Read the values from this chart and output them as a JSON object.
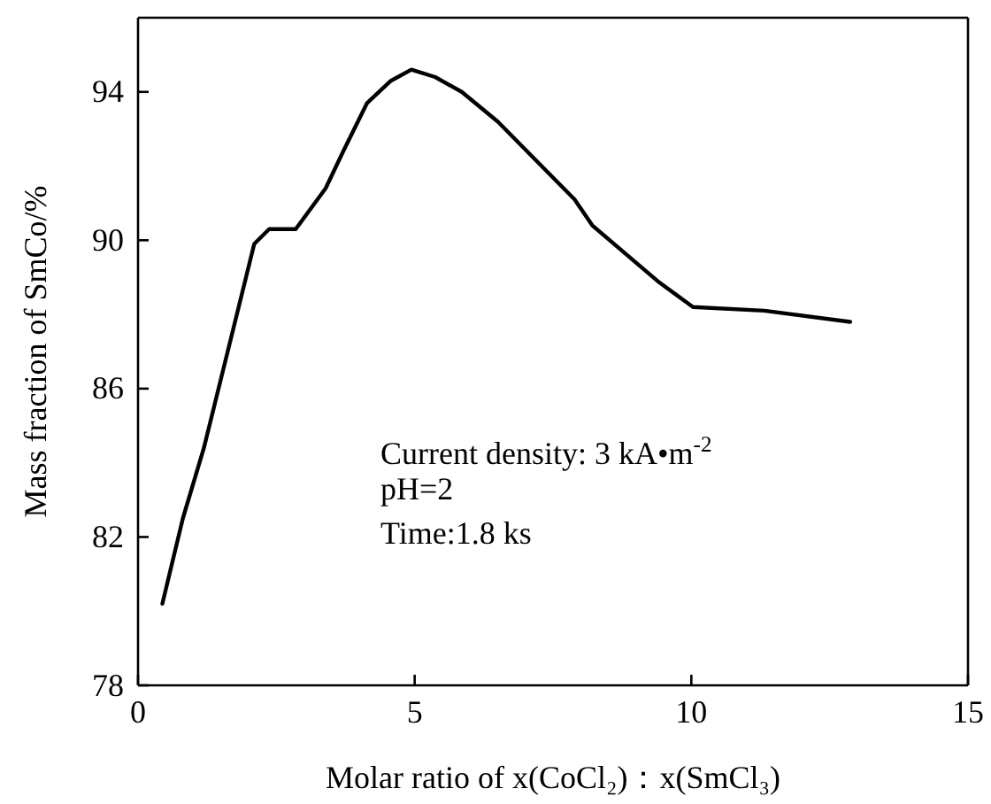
{
  "chart_data": {
    "type": "line",
    "xlabel": "Molar ratio of x(CoCl₂)：x(SmCl₃)",
    "ylabel": "Mass fraction of SmCo/%",
    "xlim": [
      0,
      15
    ],
    "xticks": [
      0,
      5,
      10,
      15
    ],
    "ylim": [
      78,
      96
    ],
    "yticks": [
      78,
      82,
      86,
      90,
      94
    ],
    "series": [
      {
        "color": "#000000",
        "x": [
          0.44,
          0.81,
          1.19,
          1.67,
          2.1,
          2.37,
          2.85,
          3.39,
          3.71,
          4.14,
          4.57,
          4.94,
          5.37,
          5.85,
          6.5,
          7.89,
          8.21,
          9.39,
          10.03,
          11.32,
          12.87
        ],
        "values": [
          80.2,
          82.5,
          84.4,
          87.3,
          89.9,
          90.3,
          90.3,
          91.4,
          92.4,
          93.7,
          94.3,
          94.6,
          94.4,
          94.0,
          93.2,
          91.1,
          90.4,
          88.9,
          88.2,
          88.1,
          87.8
        ]
      }
    ],
    "annotations": [
      "Current density: 3 kA•m$^{-2}$",
      "pH=2",
      "Time:1.8 ks"
    ],
    "grid": false,
    "marker": "none",
    "line_style": "solid"
  }
}
